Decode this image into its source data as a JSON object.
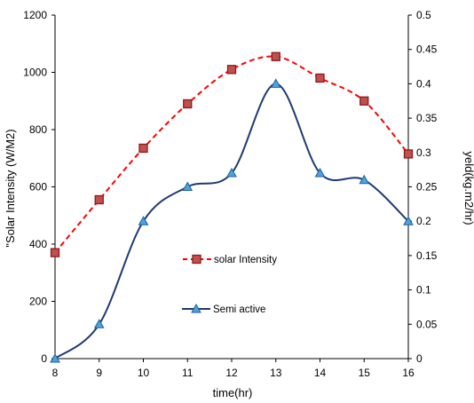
{
  "chart_data": {
    "type": "line",
    "xlabel": "time(hr)",
    "ylabel_left": "\"Solar Intensity (W/M2)",
    "ylabel_right": "yeld(kg.m2/hr)",
    "x": [
      8,
      9,
      10,
      11,
      12,
      13,
      14,
      15,
      16
    ],
    "xlim": [
      8,
      16
    ],
    "ylim_left": [
      0,
      1200
    ],
    "ylim_right": [
      0,
      0.5
    ],
    "x_ticks": [
      "8",
      "9",
      "10",
      "11",
      "12",
      "13",
      "14",
      "15",
      "16"
    ],
    "y_left_ticks": [
      "0",
      "200",
      "400",
      "600",
      "800",
      "1000",
      "1200"
    ],
    "y_right_ticks": [
      "0",
      "0.05",
      "0.1",
      "0.15",
      "0.2",
      "0.25",
      "0.3",
      "0.35",
      "0.4",
      "0.45",
      "0.5"
    ],
    "grid": false,
    "series": [
      {
        "name": "solar Intensity",
        "axis": "left",
        "values": [
          370,
          555,
          735,
          890,
          1010,
          1055,
          980,
          900,
          715
        ],
        "color": "#ff0000",
        "marker_fill": "#c0504d",
        "marker_stroke": "#8b1a1a",
        "line_style": "dashed",
        "marker": "square"
      },
      {
        "name": "Semi active",
        "axis": "right",
        "values": [
          0,
          0.05,
          0.2,
          0.25,
          0.27,
          0.4,
          0.27,
          0.26,
          0.2
        ],
        "color": "#1f3a73",
        "marker_fill": "#4aa3df",
        "marker_stroke": "#1f5f9a",
        "line_style": "solid",
        "marker": "triangle"
      }
    ]
  }
}
